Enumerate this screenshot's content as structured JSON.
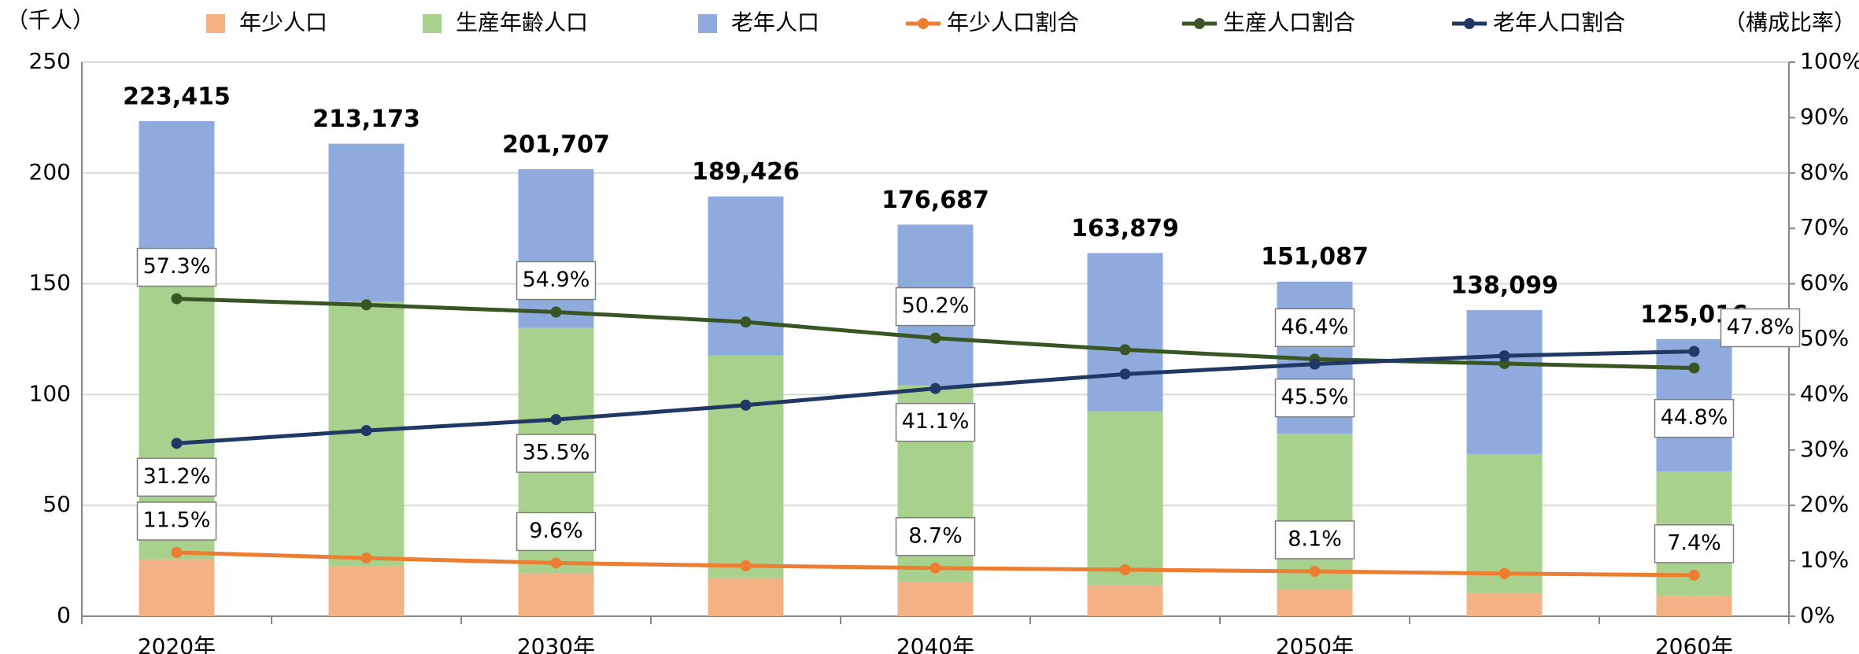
{
  "chart_data": {
    "type": "bar",
    "y_label": "（千人）",
    "y2_label": "（構成比率）",
    "categories": [
      "2020年",
      null,
      "2030年",
      null,
      "2040年",
      null,
      "2050年",
      null,
      "2060年"
    ],
    "series": [
      {
        "name": "年少人口",
        "type": "bar",
        "axis": "y",
        "color": "#f4b183",
        "values": [
          25.7,
          22.4,
          19.4,
          17.2,
          15.4,
          13.8,
          12.2,
          10.6,
          9.3
        ]
      },
      {
        "name": "生産年齢人口",
        "type": "bar",
        "axis": "y",
        "color": "#a9d18e",
        "values": [
          128.0,
          119.6,
          110.7,
          100.4,
          88.7,
          78.7,
          70.1,
          62.6,
          56.0
        ]
      },
      {
        "name": "老年人口",
        "type": "bar",
        "axis": "y",
        "color": "#8faadc",
        "values": [
          69.7,
          71.2,
          71.6,
          71.8,
          72.6,
          71.4,
          68.7,
          64.9,
          59.7
        ]
      },
      {
        "name": "年少人口割合",
        "type": "line",
        "axis": "y2",
        "color": "#ed7d31",
        "values": [
          11.5,
          10.5,
          9.6,
          9.1,
          8.7,
          8.4,
          8.1,
          7.7,
          7.4
        ],
        "value_labels": [
          "11.5%",
          null,
          "9.6%",
          null,
          "8.7%",
          null,
          "8.1%",
          null,
          "7.4%"
        ]
      },
      {
        "name": "生産人口割合",
        "type": "line",
        "axis": "y2",
        "color": "#375623",
        "values": [
          57.3,
          56.2,
          54.9,
          53.1,
          50.2,
          48.1,
          46.4,
          45.6,
          44.8
        ],
        "value_labels": [
          "57.3%",
          null,
          "54.9%",
          null,
          "50.2%",
          null,
          "46.4%",
          null,
          "44.8%"
        ]
      },
      {
        "name": "老年人口割合",
        "type": "line",
        "axis": "y2",
        "color": "#203864",
        "values": [
          31.2,
          33.5,
          35.5,
          38.1,
          41.1,
          43.7,
          45.5,
          47.0,
          47.8
        ],
        "value_labels": [
          "31.2%",
          null,
          "35.5%",
          null,
          "41.1%",
          null,
          "45.5%",
          null,
          "47.8%"
        ]
      }
    ],
    "totals": [
      223.415,
      213.173,
      201.707,
      189.426,
      176.687,
      163.879,
      151.087,
      138.099,
      125.016
    ],
    "total_labels": [
      "223,415",
      "213,173",
      "201,707",
      "189,426",
      "176,687",
      "163,879",
      "151,087",
      "138,099",
      "125,016"
    ],
    "ylim": [
      0,
      250
    ],
    "yticks": [
      0,
      50,
      100,
      150,
      200,
      250
    ],
    "y2lim": [
      0,
      100
    ],
    "y2ticks": [
      {
        "value": 0,
        "label": "0%"
      },
      {
        "value": 10,
        "label": "10%"
      },
      {
        "value": 20,
        "label": "20%"
      },
      {
        "value": 30,
        "label": "30%"
      },
      {
        "value": 40,
        "label": "40%"
      },
      {
        "value": 50,
        "label": "50%"
      },
      {
        "value": 60,
        "label": "60%"
      },
      {
        "value": 70,
        "label": "70%"
      },
      {
        "value": 80,
        "label": "80%"
      },
      {
        "value": 90,
        "label": "90%"
      },
      {
        "value": 100,
        "label": "100%"
      }
    ],
    "grid": true,
    "legend": "top"
  }
}
